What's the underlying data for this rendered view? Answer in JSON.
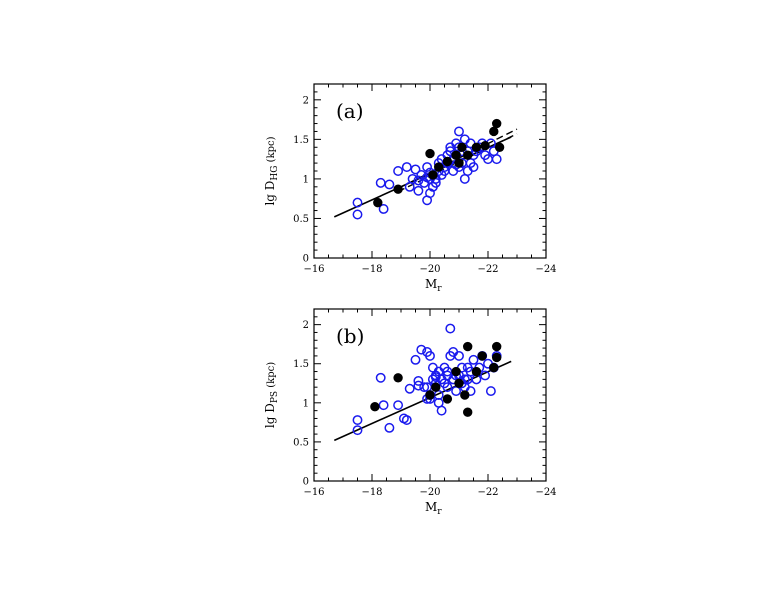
{
  "chart_data": [
    {
      "type": "scatter",
      "panel_label": "(a)",
      "xlabel_main": "M",
      "xlabel_sub": "r",
      "ylabel_main": "lg D",
      "ylabel_sub": "HG",
      "ylabel_tail": " (kpc)",
      "xlim": [
        -16,
        -24
      ],
      "ylim": [
        0,
        2.2
      ],
      "xticks": [
        -16,
        -18,
        -20,
        -22,
        -24
      ],
      "yticks": [
        0,
        0.5,
        1,
        1.5,
        2
      ],
      "xtick_labels": [
        "−16",
        "−18",
        "−20",
        "−22",
        "−24"
      ],
      "ytick_labels": [
        "0",
        "0.5",
        "1",
        "1.5",
        "2"
      ],
      "series": [
        {
          "marker": "open-circle",
          "color": "#1a1aee",
          "x": [
            -17.5,
            -17.5,
            -18.3,
            -18.4,
            -18.6,
            -18.9,
            -19.2,
            -19.3,
            -19.4,
            -19.5,
            -19.6,
            -19.7,
            -19.8,
            -19.9,
            -19.9,
            -20.0,
            -20.0,
            -20.1,
            -20.1,
            -20.2,
            -20.2,
            -20.3,
            -20.3,
            -20.4,
            -20.4,
            -20.5,
            -20.5,
            -20.6,
            -20.6,
            -20.7,
            -20.7,
            -20.8,
            -20.8,
            -20.9,
            -20.9,
            -21.0,
            -21.0,
            -21.0,
            -21.1,
            -21.1,
            -21.2,
            -21.2,
            -21.3,
            -21.3,
            -21.4,
            -21.4,
            -21.5,
            -21.5,
            -21.6,
            -21.7,
            -21.8,
            -21.9,
            -22.0,
            -22.1,
            -22.2,
            -22.3,
            -19.6,
            -19.9,
            -20.0,
            -20.9
          ],
          "y": [
            0.7,
            0.55,
            0.95,
            0.62,
            0.93,
            1.1,
            1.15,
            0.9,
            1.0,
            1.12,
            0.85,
            1.05,
            0.95,
            1.15,
            0.73,
            1.0,
            0.82,
            1.05,
            0.9,
            1.0,
            0.95,
            1.1,
            1.2,
            1.25,
            1.05,
            1.15,
            1.1,
            1.2,
            1.3,
            1.35,
            1.4,
            1.25,
            1.1,
            1.45,
            1.3,
            1.6,
            1.4,
            1.15,
            1.35,
            1.2,
            1.5,
            1.0,
            1.35,
            1.1,
            1.45,
            1.2,
            1.3,
            1.15,
            1.35,
            1.4,
            1.45,
            1.3,
            1.25,
            1.45,
            1.35,
            1.25,
            0.98,
            1.02,
            1.08,
            1.18
          ]
        },
        {
          "marker": "filled-circle",
          "color": "#000000",
          "x": [
            -18.2,
            -18.9,
            -20.0,
            -20.1,
            -20.6,
            -20.9,
            -21.1,
            -21.3,
            -21.6,
            -21.9,
            -22.2,
            -22.3,
            -22.4,
            -21.0,
            -20.3
          ],
          "y": [
            0.7,
            0.87,
            1.32,
            1.05,
            1.22,
            1.3,
            1.4,
            1.3,
            1.4,
            1.42,
            1.6,
            1.7,
            1.4,
            1.2,
            1.15
          ]
        }
      ],
      "lines": [
        {
          "style": "solid",
          "x": [
            -16.7,
            -22.8
          ],
          "y": [
            0.52,
            1.53
          ]
        },
        {
          "style": "dashed",
          "x": [
            -18.9,
            -23.0
          ],
          "y": [
            0.88,
            1.63
          ]
        },
        {
          "style": "dashed",
          "x": [
            -18.9,
            -23.0
          ],
          "y": [
            0.84,
            1.57
          ]
        }
      ]
    },
    {
      "type": "scatter",
      "panel_label": "(b)",
      "xlabel_main": "M",
      "xlabel_sub": "r",
      "ylabel_main": "lg D",
      "ylabel_sub": "PS",
      "ylabel_tail": " (kpc)",
      "xlim": [
        -16,
        -24
      ],
      "ylim": [
        0,
        2.2
      ],
      "xticks": [
        -16,
        -18,
        -20,
        -22,
        -24
      ],
      "yticks": [
        0,
        0.5,
        1,
        1.5,
        2
      ],
      "xtick_labels": [
        "−16",
        "−18",
        "−20",
        "−22",
        "−24"
      ],
      "ytick_labels": [
        "0",
        "0.5",
        "1",
        "1.5",
        "2"
      ],
      "series": [
        {
          "marker": "open-circle",
          "color": "#1a1aee",
          "x": [
            -17.5,
            -17.5,
            -18.3,
            -18.4,
            -18.6,
            -18.9,
            -19.1,
            -19.2,
            -19.3,
            -19.5,
            -19.6,
            -19.7,
            -19.8,
            -19.9,
            -19.9,
            -20.0,
            -20.0,
            -20.1,
            -20.1,
            -20.2,
            -20.2,
            -20.3,
            -20.3,
            -20.4,
            -20.4,
            -20.5,
            -20.5,
            -20.6,
            -20.6,
            -20.7,
            -20.7,
            -20.8,
            -20.8,
            -20.9,
            -20.9,
            -21.0,
            -21.0,
            -21.1,
            -21.1,
            -21.2,
            -21.2,
            -21.3,
            -21.3,
            -21.4,
            -21.4,
            -21.5,
            -21.6,
            -21.7,
            -21.8,
            -21.9,
            -22.0,
            -22.1,
            -22.2,
            -22.3,
            -19.6,
            -19.9,
            -20.0,
            -20.2,
            -20.3,
            -20.6
          ],
          "y": [
            0.78,
            0.65,
            1.32,
            0.97,
            0.68,
            0.97,
            0.8,
            0.78,
            1.18,
            1.55,
            1.28,
            1.68,
            1.2,
            1.65,
            1.05,
            1.6,
            1.1,
            1.3,
            1.45,
            1.35,
            1.25,
            1.4,
            1.0,
            1.3,
            0.9,
            1.25,
            1.45,
            1.35,
            1.2,
            1.95,
            1.6,
            1.3,
            1.65,
            1.35,
            1.15,
            1.35,
            1.6,
            1.45,
            1.25,
            1.3,
            1.2,
            1.45,
            1.3,
            1.4,
            1.15,
            1.55,
            1.3,
            1.45,
            1.6,
            1.35,
            1.5,
            1.15,
            1.45,
            1.6,
            1.22,
            1.2,
            1.05,
            1.33,
            1.1,
            1.4
          ]
        },
        {
          "marker": "filled-circle",
          "color": "#000000",
          "x": [
            -18.1,
            -18.9,
            -20.0,
            -20.2,
            -20.6,
            -20.9,
            -21.2,
            -21.3,
            -21.6,
            -21.8,
            -22.2,
            -22.3,
            -22.3,
            -21.3,
            -21.0
          ],
          "y": [
            0.95,
            1.32,
            1.1,
            1.2,
            1.05,
            1.4,
            1.1,
            1.72,
            1.4,
            1.6,
            1.45,
            1.72,
            1.58,
            0.88,
            1.25
          ]
        }
      ],
      "lines": [
        {
          "style": "solid",
          "x": [
            -16.7,
            -22.8
          ],
          "y": [
            0.52,
            1.53
          ]
        }
      ]
    }
  ]
}
